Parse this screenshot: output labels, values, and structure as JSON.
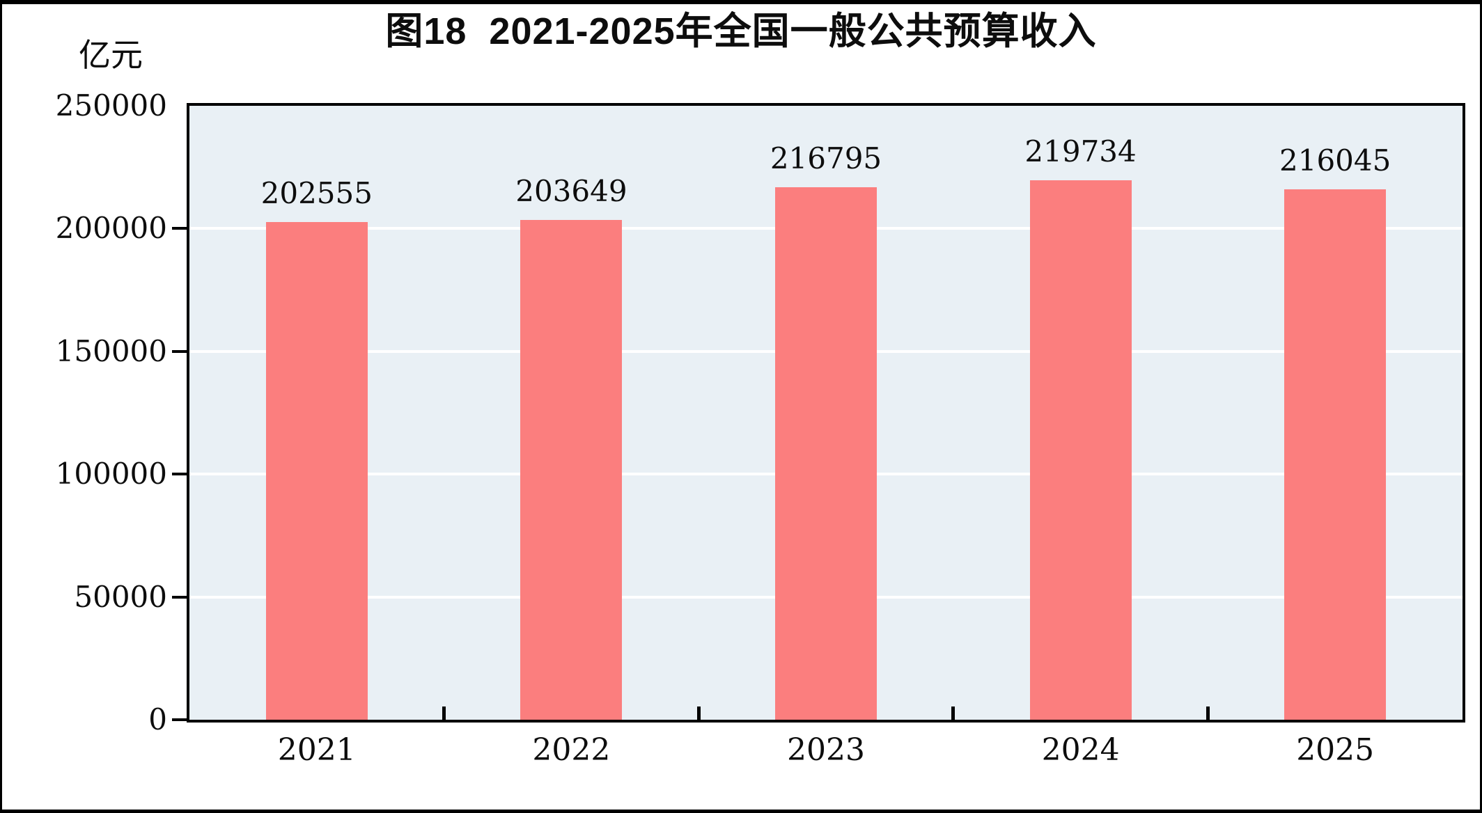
{
  "figure": {
    "title": "图18  2021-2025年全国一般公共预算收入",
    "unit_label": "亿元"
  },
  "chart_data": {
    "type": "bar",
    "title": "图18  2021-2025年全国一般公共预算收入",
    "categories": [
      "2021",
      "2022",
      "2023",
      "2024",
      "2025"
    ],
    "values": [
      202555,
      203649,
      216795,
      219734,
      216045
    ],
    "bar_labels": [
      "202555",
      "203649",
      "216795",
      "219734",
      "216045"
    ],
    "xlabel": "",
    "ylabel": "亿元",
    "ylim": [
      0,
      250000
    ],
    "yticks": [
      0,
      50000,
      100000,
      150000,
      200000,
      250000
    ],
    "ytick_marks": [
      0,
      50000,
      100000,
      150000,
      200000
    ],
    "grid": "horizontal gridlines on, white",
    "legend_position": "none",
    "colors": {
      "bar": "#fb7e7e",
      "plot_background": "#e9f0f5",
      "gridline": "#ffffff",
      "frame": "#000000",
      "text": "#0d0d0d"
    }
  }
}
